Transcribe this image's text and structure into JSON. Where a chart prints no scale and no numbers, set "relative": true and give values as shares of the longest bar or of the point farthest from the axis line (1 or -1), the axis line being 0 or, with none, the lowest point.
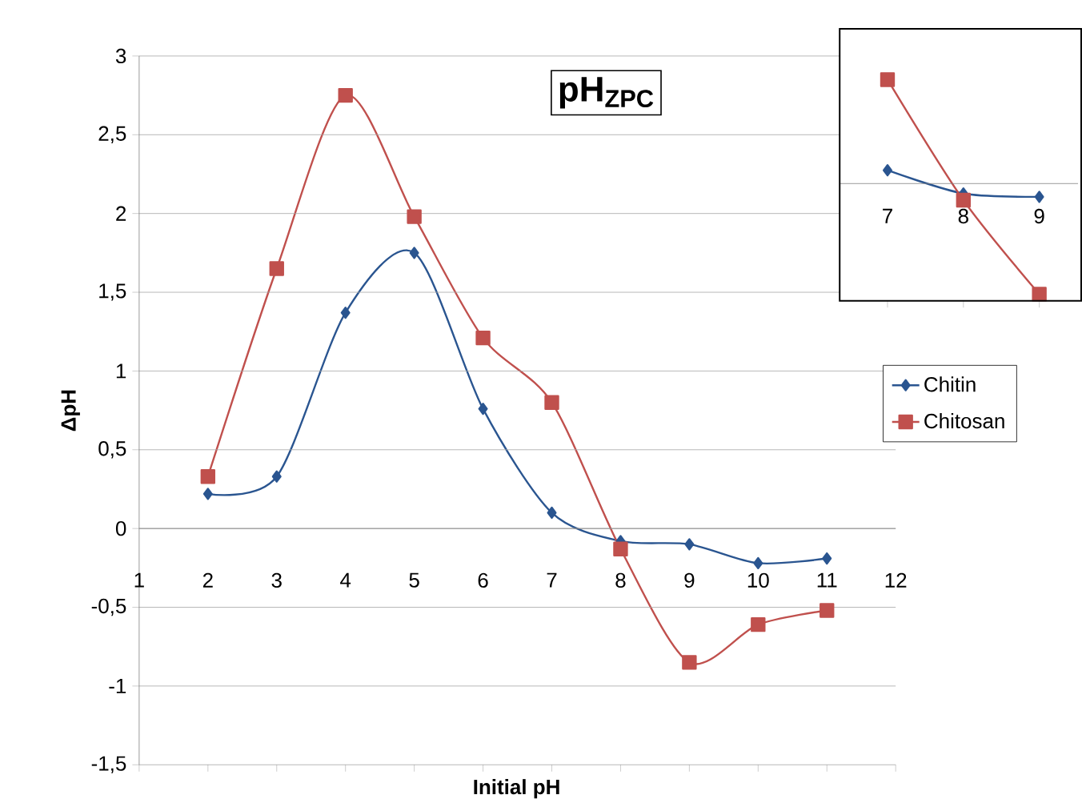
{
  "chart_data": [
    {
      "type": "line",
      "title": "pH$_{ZPC}$",
      "xlabel": "Initial pH",
      "ylabel": "ΔpH",
      "x": [
        2,
        3,
        4,
        5,
        6,
        7,
        8,
        9,
        10,
        11
      ],
      "xlim": [
        1,
        12
      ],
      "xticks": [
        1,
        2,
        3,
        4,
        5,
        6,
        7,
        8,
        9,
        10,
        11,
        12
      ],
      "ylim": [
        -1.5,
        3
      ],
      "yticks": [
        {
          "value": -1.5,
          "label": "-1,5"
        },
        -1,
        {
          "value": -0.5,
          "label": "-0,5"
        },
        0,
        {
          "value": 0.5,
          "label": "0,5"
        },
        1,
        {
          "value": 1.5,
          "label": "1,5"
        },
        2,
        {
          "value": 2.5,
          "label": "2,5"
        },
        3
      ],
      "grid": "y",
      "legend": "right",
      "series": [
        {
          "name": "Chitin",
          "color": "#2a5590",
          "marker": "diamond",
          "values": [
            0.22,
            0.33,
            1.37,
            1.75,
            0.76,
            0.1,
            -0.08,
            -0.1,
            -0.22,
            -0.19
          ]
        },
        {
          "name": "Chitosan",
          "color": "#c0504d",
          "marker": "square",
          "values": [
            0.33,
            1.65,
            2.75,
            1.98,
            1.21,
            0.8,
            -0.13,
            -0.85,
            -0.61,
            -0.52
          ]
        }
      ]
    },
    {
      "type": "line",
      "x": [
        7,
        8,
        9
      ],
      "relative": true,
      "xlim": [
        6.37,
        9.51
      ],
      "xticks": [
        7,
        8,
        9
      ],
      "series": [
        {
          "color": "#2a5590",
          "marker": "diamond",
          "values": [
            0.12,
            -0.09,
            -0.12
          ]
        },
        {
          "color": "#c0504d",
          "marker": "square",
          "values": [
            0.94,
            -0.15,
            -1
          ]
        }
      ]
    }
  ]
}
